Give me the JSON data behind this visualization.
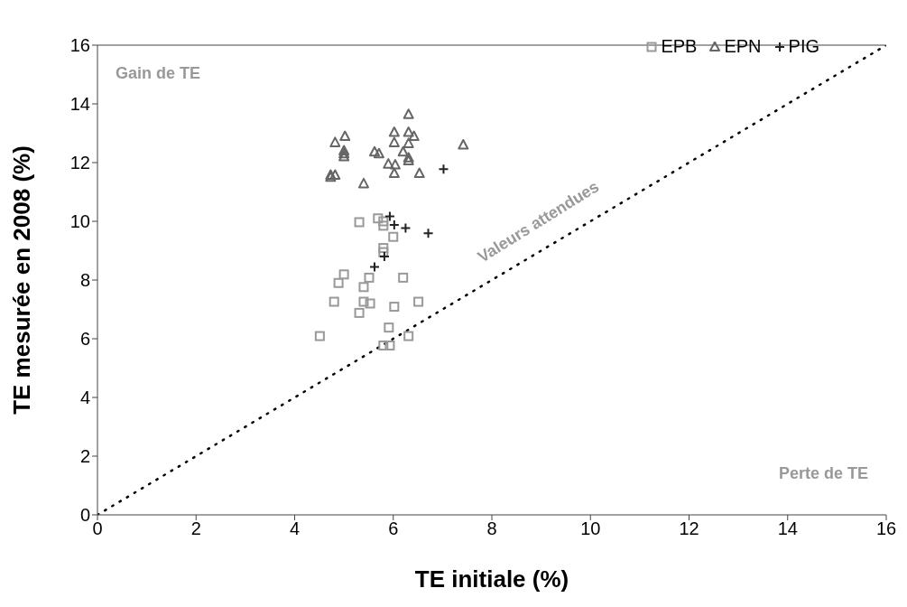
{
  "chart_data": {
    "type": "scatter",
    "xlabel": "TE initiale (%)",
    "ylabel": "TE mesurée en 2008 (%)",
    "xlim": [
      0,
      16
    ],
    "xticks": [
      0,
      2,
      4,
      6,
      8,
      10,
      12,
      14,
      16
    ],
    "ylim": [
      0,
      16
    ],
    "yticks": [
      0,
      2,
      4,
      6,
      8,
      10,
      12,
      14,
      16
    ],
    "legend": "top right",
    "annotations": [
      "Gain de TE",
      "Perte de TE",
      {
        "text": "Valeurs attendues",
        "x": 9,
        "y": 9
      }
    ],
    "series": [
      {
        "name": "EPB",
        "color": "#999999",
        "marker": "square",
        "x": [
          5.31,
          5.69,
          5.8,
          5.8,
          6.0,
          5.8,
          5.8,
          5.0,
          4.89,
          5.51,
          6.2,
          5.4,
          4.8,
          5.4,
          5.53,
          6.02,
          6.51,
          5.31,
          5.91,
          4.51,
          6.31,
          5.8,
          5.93
        ],
        "values": [
          9.97,
          10.1,
          10.0,
          9.85,
          9.47,
          9.09,
          8.95,
          8.19,
          7.9,
          8.08,
          8.08,
          7.76,
          7.26,
          7.26,
          7.2,
          7.09,
          7.26,
          6.88,
          6.38,
          6.09,
          6.09,
          5.77,
          5.77
        ]
      },
      {
        "name": "EPN",
        "color": "#666666",
        "marker": "triangle",
        "x": [
          6.31,
          6.02,
          6.31,
          6.42,
          6.02,
          6.31,
          6.2,
          6.31,
          6.31,
          5.9,
          6.04,
          6.02,
          6.53,
          7.42,
          4.82,
          5.02,
          5.0,
          5.0,
          5.0,
          5.62,
          5.71,
          4.73,
          4.82,
          4.73,
          5.4
        ],
        "values": [
          13.64,
          13.03,
          13.03,
          12.89,
          12.68,
          12.65,
          12.36,
          12.16,
          12.06,
          11.95,
          11.92,
          11.63,
          11.63,
          12.6,
          12.68,
          12.89,
          12.4,
          12.3,
          12.2,
          12.36,
          12.3,
          11.57,
          11.57,
          11.5,
          11.28
        ]
      },
      {
        "name": "PIG",
        "color": "#222222",
        "marker": "cross",
        "x": [
          7.02,
          5.93,
          6.02,
          6.25,
          6.71,
          5.62,
          5.82
        ],
        "values": [
          11.78,
          10.17,
          9.88,
          9.77,
          9.59,
          8.45,
          8.8
        ]
      },
      {
        "type": "line",
        "color": "#000000",
        "marker": "none",
        "line_style": "dotted",
        "x": [
          0,
          16
        ],
        "values": [
          0,
          16
        ]
      }
    ]
  }
}
